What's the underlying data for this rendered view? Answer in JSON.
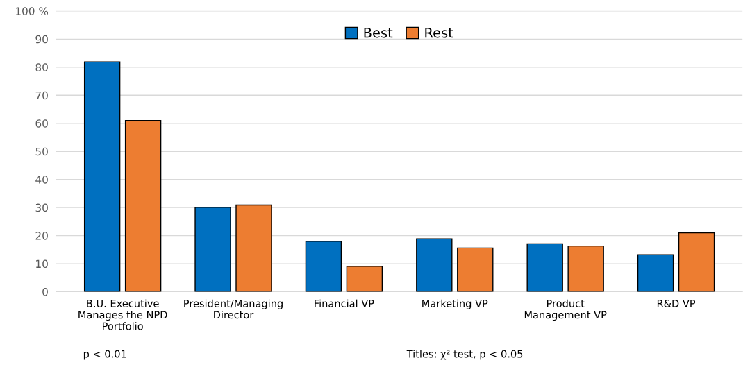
{
  "chart_data": {
    "type": "bar",
    "categories": [
      "B.U. Executive\nManages the NPD\nPortfolio",
      "President/Managing\nDirector",
      "Financial VP",
      "Marketing VP",
      "Product\nManagement VP",
      "R&D VP"
    ],
    "series": [
      {
        "name": "Best",
        "color": "#0070c0",
        "values": [
          81.9,
          30.1,
          18.0,
          18.9,
          17.1,
          13.2
        ]
      },
      {
        "name": "Rest",
        "color": "#ed7d31",
        "values": [
          61.0,
          30.9,
          9.1,
          15.6,
          16.3,
          21.0
        ]
      }
    ],
    "ylim": [
      0,
      100
    ],
    "yticks": [
      0,
      10,
      20,
      30,
      40,
      50,
      60,
      70,
      80,
      90,
      {
        "value": 100,
        "label": "100 %"
      }
    ],
    "grid": "y",
    "legend": "top",
    "annotations": [
      "p < 0.01",
      "Titles: χ² test, p < 0.05"
    ]
  }
}
